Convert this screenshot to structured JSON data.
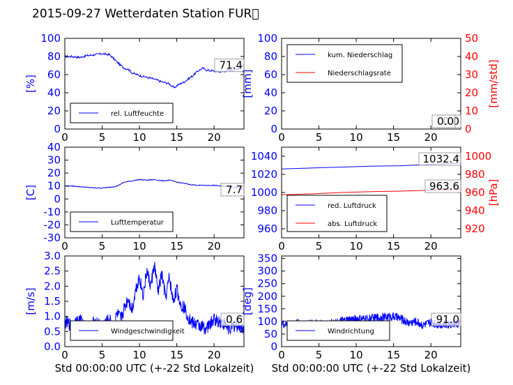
{
  "title": "2015-09-27 Wetterdaten Station FUR\u0000",
  "colors": {
    "primary": "#0000ff",
    "secondary": "#ff0000",
    "axis": "#000000"
  },
  "chart_data": [
    {
      "type": "line",
      "panel": "top-left",
      "ylabel": "[%]",
      "ylim": [
        0,
        100
      ],
      "yticks": [
        0,
        20,
        40,
        60,
        80,
        100
      ],
      "xlim": [
        0,
        24
      ],
      "xticks": [
        0,
        5,
        10,
        15,
        20
      ],
      "legend": [
        "rel. Luftfeuchte"
      ],
      "annotations": [
        "71.4"
      ],
      "series": [
        {
          "name": "rel. Luftfeuchte",
          "color": "#0000ff",
          "x": [
            0,
            1,
            2,
            3,
            4,
            5,
            6,
            6.5,
            7,
            7.5,
            8,
            8.5,
            9,
            10,
            11,
            12,
            13,
            14,
            14.7,
            15,
            15.5,
            16,
            17,
            18,
            18.5,
            19,
            20,
            21,
            22,
            23,
            24
          ],
          "y": [
            80,
            80,
            79,
            81,
            82,
            83,
            82,
            78,
            74,
            70,
            67,
            66,
            62,
            59,
            57,
            55,
            52,
            50,
            45,
            48,
            50,
            52,
            58,
            65,
            67,
            65,
            64,
            63,
            65,
            66,
            71
          ]
        }
      ]
    },
    {
      "type": "line",
      "panel": "top-right",
      "ylabel": "[mm]",
      "ylabel_right": "[mm/std]",
      "ylim": [
        0,
        100
      ],
      "ylim_right": [
        0,
        50
      ],
      "yticks": [
        0,
        20,
        40,
        60,
        80,
        100
      ],
      "yticks_right": [
        0,
        10,
        20,
        30,
        40,
        50
      ],
      "xlim": [
        0,
        24
      ],
      "xticks": [
        0,
        5,
        10,
        15,
        20
      ],
      "legend": [
        "kum. Niederschlag",
        "Niederschlagsrate"
      ],
      "annotations": [
        "0.0",
        "0.0"
      ],
      "series": [
        {
          "name": "kum. Niederschlag",
          "color": "#0000ff",
          "axis": "left",
          "x": [
            0,
            24
          ],
          "y": [
            0,
            0
          ]
        },
        {
          "name": "Niederschlagsrate",
          "color": "#ff0000",
          "axis": "right",
          "x": [
            0,
            24
          ],
          "y": [
            0,
            0
          ]
        }
      ]
    },
    {
      "type": "line",
      "panel": "middle-left",
      "ylabel": "[C]",
      "ylim": [
        -30,
        40
      ],
      "yticks": [
        -30,
        -20,
        -10,
        0,
        10,
        20,
        30,
        40
      ],
      "xlim": [
        0,
        24
      ],
      "xticks": [
        0,
        5,
        10,
        15,
        20
      ],
      "legend": [
        "Lufttemperatur"
      ],
      "annotations": [
        "7.7"
      ],
      "series": [
        {
          "name": "Lufttemperatur",
          "color": "#0000ff",
          "x": [
            0,
            1,
            2,
            3,
            4,
            5,
            6,
            7,
            8,
            9,
            10,
            11,
            12,
            13,
            14,
            15,
            16,
            17,
            18,
            19,
            20,
            21,
            22,
            23,
            24
          ],
          "y": [
            10,
            10,
            9.5,
            9,
            8.5,
            8.5,
            9,
            10,
            13,
            14,
            15,
            14.5,
            15,
            14,
            14.5,
            13,
            12,
            11,
            10.5,
            10.5,
            10.5,
            10,
            9.5,
            9,
            7.7
          ]
        }
      ]
    },
    {
      "type": "line",
      "panel": "middle-right",
      "ylim": [
        950,
        1050
      ],
      "yticks": [
        960,
        980,
        1000,
        1020,
        1040
      ],
      "ylabel_right": "[hPa]",
      "ylim_right": [
        910,
        1010
      ],
      "yticks_right": [
        920,
        940,
        960,
        980,
        1000
      ],
      "xlim": [
        0,
        24
      ],
      "xticks": [
        0,
        5,
        10,
        15,
        20
      ],
      "legend": [
        "red. Luftdruck",
        "abs. Luftdruck"
      ],
      "annotations": [
        "1032.4",
        "963.6"
      ],
      "series": [
        {
          "name": "red. Luftdruck",
          "color": "#0000ff",
          "axis": "left",
          "x": [
            0,
            4,
            8,
            12,
            16,
            20,
            24
          ],
          "y": [
            1026,
            1027,
            1028,
            1029,
            1029.5,
            1031,
            1032.4
          ]
        },
        {
          "name": "abs. Luftdruck",
          "color": "#ff0000",
          "axis": "right",
          "x": [
            0,
            4,
            8,
            12,
            16,
            20,
            24
          ],
          "y": [
            957.5,
            958.5,
            960,
            961,
            961.5,
            962.5,
            963.6
          ]
        }
      ]
    },
    {
      "type": "line",
      "panel": "bottom-left",
      "ylabel": "[m/s]",
      "xlabel": "Std 00:00:00 UTC (+-22 Std Lokalzeit)",
      "ylim": [
        0,
        3
      ],
      "yticks": [
        "0.0",
        "0.5",
        "1.0",
        "1.5",
        "2.0",
        "2.5",
        "3.0"
      ],
      "xlim": [
        0,
        24
      ],
      "xticks": [
        0,
        5,
        10,
        15,
        20
      ],
      "legend": [
        "Windgeschwindigkeit"
      ],
      "annotations": [
        "0.6"
      ],
      "series": [
        {
          "name": "Windgeschwindigkeit",
          "color": "#0000ff",
          "x": [
            0,
            1,
            2,
            3,
            4,
            5,
            6,
            6.5,
            7,
            7.5,
            8,
            8.5,
            9,
            9.5,
            10,
            10.5,
            11,
            11.5,
            12,
            12.5,
            13,
            13.5,
            14,
            14.5,
            15,
            15.5,
            16,
            16.5,
            17,
            18,
            19,
            20,
            21,
            22,
            23,
            24
          ],
          "y": [
            0.8,
            0.7,
            0.9,
            0.6,
            0.8,
            0.7,
            0.9,
            0.6,
            1.1,
            0.9,
            1.3,
            1.6,
            1.2,
            1.9,
            2.3,
            1.7,
            2.5,
            2.0,
            2.7,
            1.8,
            2.4,
            1.6,
            2.3,
            1.5,
            1.9,
            1.4,
            1.3,
            1.0,
            0.8,
            0.7,
            0.6,
            0.9,
            0.8,
            0.6,
            0.7,
            0.6
          ]
        }
      ]
    },
    {
      "type": "line",
      "panel": "bottom-right",
      "ylabel": "[deg]",
      "xlabel": "Std 00:00:00 UTC (+-22 Std Lokalzeit)",
      "ylim": [
        0,
        360
      ],
      "yticks": [
        0,
        50,
        100,
        150,
        200,
        250,
        300,
        350
      ],
      "xlim": [
        0,
        24
      ],
      "xticks": [
        0,
        5,
        10,
        15,
        20
      ],
      "legend": [
        "Windrichtung"
      ],
      "annotations": [
        "91.0"
      ],
      "series": [
        {
          "name": "Windrichtung",
          "color": "#0000ff",
          "x": [
            0,
            1,
            2,
            3,
            4,
            5,
            6,
            7,
            8,
            9,
            10,
            11,
            12,
            13,
            14,
            15,
            16,
            17,
            18,
            19,
            20,
            21,
            22,
            23,
            24
          ],
          "y": [
            90,
            85,
            95,
            88,
            92,
            90,
            87,
            95,
            100,
            105,
            110,
            108,
            112,
            115,
            118,
            120,
            110,
            95,
            100,
            85,
            95,
            90,
            88,
            92,
            91
          ]
        }
      ]
    }
  ]
}
